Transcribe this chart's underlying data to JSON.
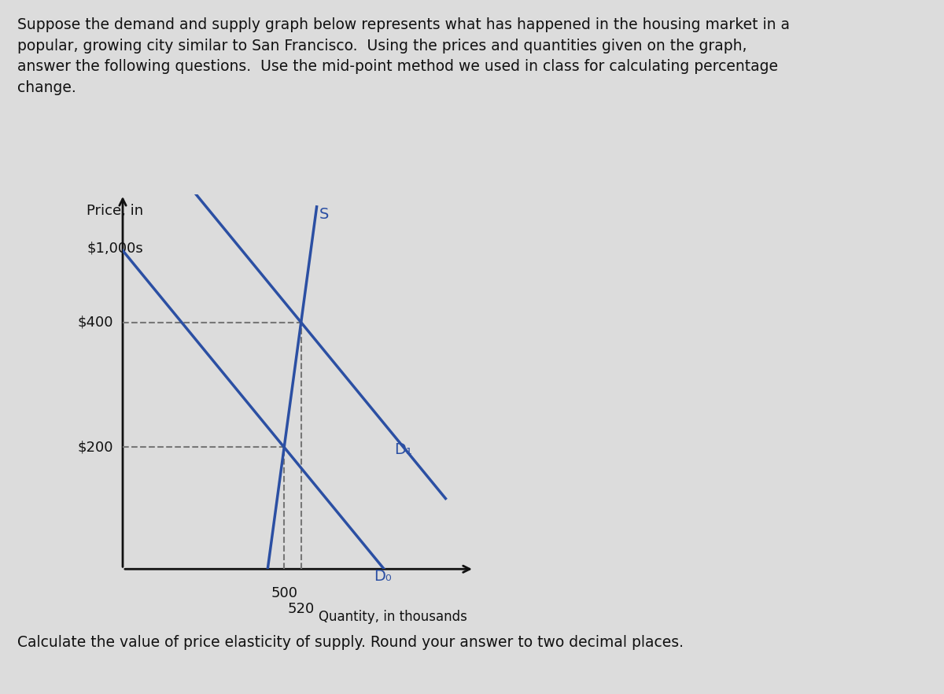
{
  "header_text": "Suppose the demand and supply graph below represents what has happened in the housing market in a\npopular, growing city similar to San Francisco.  Using the prices and quantities given on the graph,\nanswer the following questions.  Use the mid-point method we used in class for calculating percentage\nchange.",
  "footer_text": "Calculate the value of price elasticity of supply. Round your answer to two decimal places.",
  "ylabel_line1": "Price, in",
  "ylabel_line2": "$1,000s",
  "xlabel": "Quantity, in thousands",
  "supply_label": "S",
  "demand0_label": "D₀",
  "demand1_label": "D₁",
  "line_color": "#2B4FA3",
  "dashed_color": "#777777",
  "axis_color": "#111111",
  "background_color": "#dcdcdc",
  "text_color": "#111111",
  "header_fontsize": 13.5,
  "footer_fontsize": 13.5,
  "label_fontsize": 14,
  "tick_fontsize": 13
}
